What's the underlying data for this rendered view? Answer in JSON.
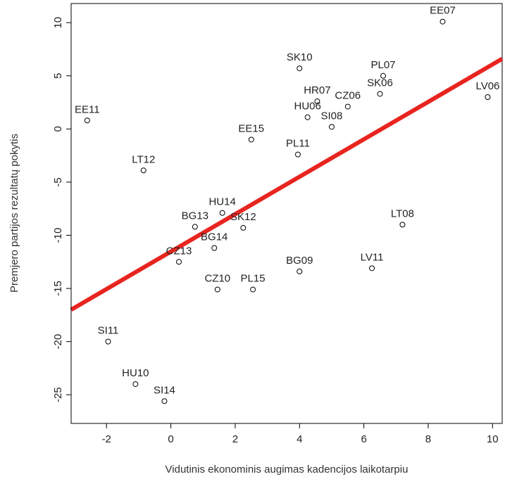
{
  "chart_data": {
    "type": "scatter",
    "xlabel": "Vidutinis ekonominis augimas kadencijos laikotarpiu",
    "ylabel": "Premjero partijos rezultatų pokytis",
    "xlim": [
      -3.1,
      10.3
    ],
    "ylim": [
      -27.7,
      11.8
    ],
    "x_ticks": [
      -2,
      0,
      2,
      4,
      6,
      8,
      10
    ],
    "y_ticks": [
      -25,
      -20,
      -15,
      -10,
      -5,
      0,
      5,
      10
    ],
    "points": [
      {
        "label": "EE07",
        "x": 8.45,
        "y": 10.1
      },
      {
        "label": "SK10",
        "x": 4.0,
        "y": 5.7
      },
      {
        "label": "PL07",
        "x": 6.6,
        "y": 5.0
      },
      {
        "label": "SK06",
        "x": 6.5,
        "y": 3.3
      },
      {
        "label": "LV06",
        "x": 9.85,
        "y": 3.0
      },
      {
        "label": "HR07",
        "x": 4.55,
        "y": 2.6
      },
      {
        "label": "CZ06",
        "x": 5.5,
        "y": 2.1
      },
      {
        "label": "HU06",
        "x": 4.25,
        "y": 1.1
      },
      {
        "label": "SI08",
        "x": 5.0,
        "y": 0.2
      },
      {
        "label": "EE11",
        "x": -2.6,
        "y": 0.8
      },
      {
        "label": "EE15",
        "x": 2.5,
        "y": -1.0
      },
      {
        "label": "PL11",
        "x": 3.95,
        "y": -2.4
      },
      {
        "label": "LT12",
        "x": -0.85,
        "y": -3.9
      },
      {
        "label": "HU14",
        "x": 1.6,
        "y": -7.9
      },
      {
        "label": "BG13",
        "x": 0.75,
        "y": -9.2
      },
      {
        "label": "SK12",
        "x": 2.25,
        "y": -9.3
      },
      {
        "label": "BG14",
        "x": 1.35,
        "y": -11.2
      },
      {
        "label": "LT08",
        "x": 7.2,
        "y": -9.0
      },
      {
        "label": "CZ13",
        "x": 0.25,
        "y": -12.5
      },
      {
        "label": "BG09",
        "x": 4.0,
        "y": -13.4
      },
      {
        "label": "LV11",
        "x": 6.25,
        "y": -13.1
      },
      {
        "label": "CZ10",
        "x": 1.45,
        "y": -15.1
      },
      {
        "label": "PL15",
        "x": 2.55,
        "y": -15.1
      },
      {
        "label": "SI11",
        "x": -1.95,
        "y": -20.0
      },
      {
        "label": "HU10",
        "x": -1.1,
        "y": -24.0
      },
      {
        "label": "SI14",
        "x": -0.2,
        "y": -25.6
      }
    ],
    "regression_line": {
      "x": [
        -3.1,
        10.3
      ],
      "y": [
        -17.0,
        6.6
      ],
      "color": "#e8241f"
    },
    "point_color": "#000000",
    "grid": false
  }
}
